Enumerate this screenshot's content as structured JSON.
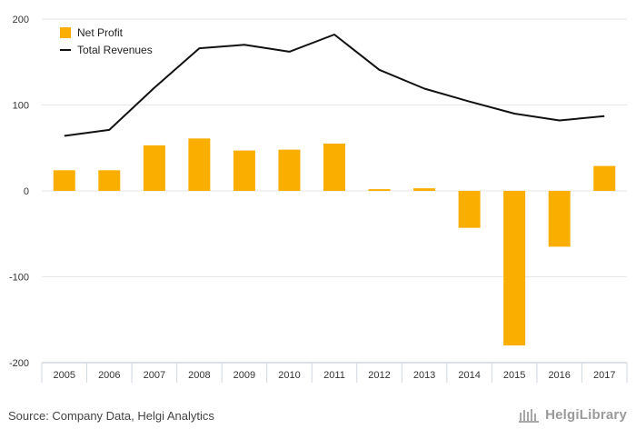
{
  "chart_data": {
    "type": "bar",
    "categories": [
      "2005",
      "2006",
      "2007",
      "2008",
      "2009",
      "2010",
      "2011",
      "2012",
      "2013",
      "2014",
      "2015",
      "2016",
      "2017"
    ],
    "series": [
      {
        "name": "Net Profit",
        "kind": "bar",
        "color": "#F9AE00",
        "values": [
          24,
          24,
          53,
          61,
          47,
          48,
          55,
          2,
          3,
          -43,
          -180,
          -65,
          29
        ]
      },
      {
        "name": "Total Revenues",
        "kind": "line",
        "color": "#111111",
        "values": [
          64,
          71,
          120,
          166,
          170,
          162,
          182,
          141,
          119,
          104,
          90,
          82,
          87
        ]
      }
    ],
    "ylim": [
      -200,
      200
    ],
    "yticks": [
      -200,
      -100,
      0,
      100,
      200
    ],
    "xlabel": "",
    "ylabel": "",
    "grid": true,
    "legend": "top-left"
  },
  "footer": {
    "source": "Source: Company Data, Helgi Analytics",
    "brand": "HelgiLibrary"
  }
}
